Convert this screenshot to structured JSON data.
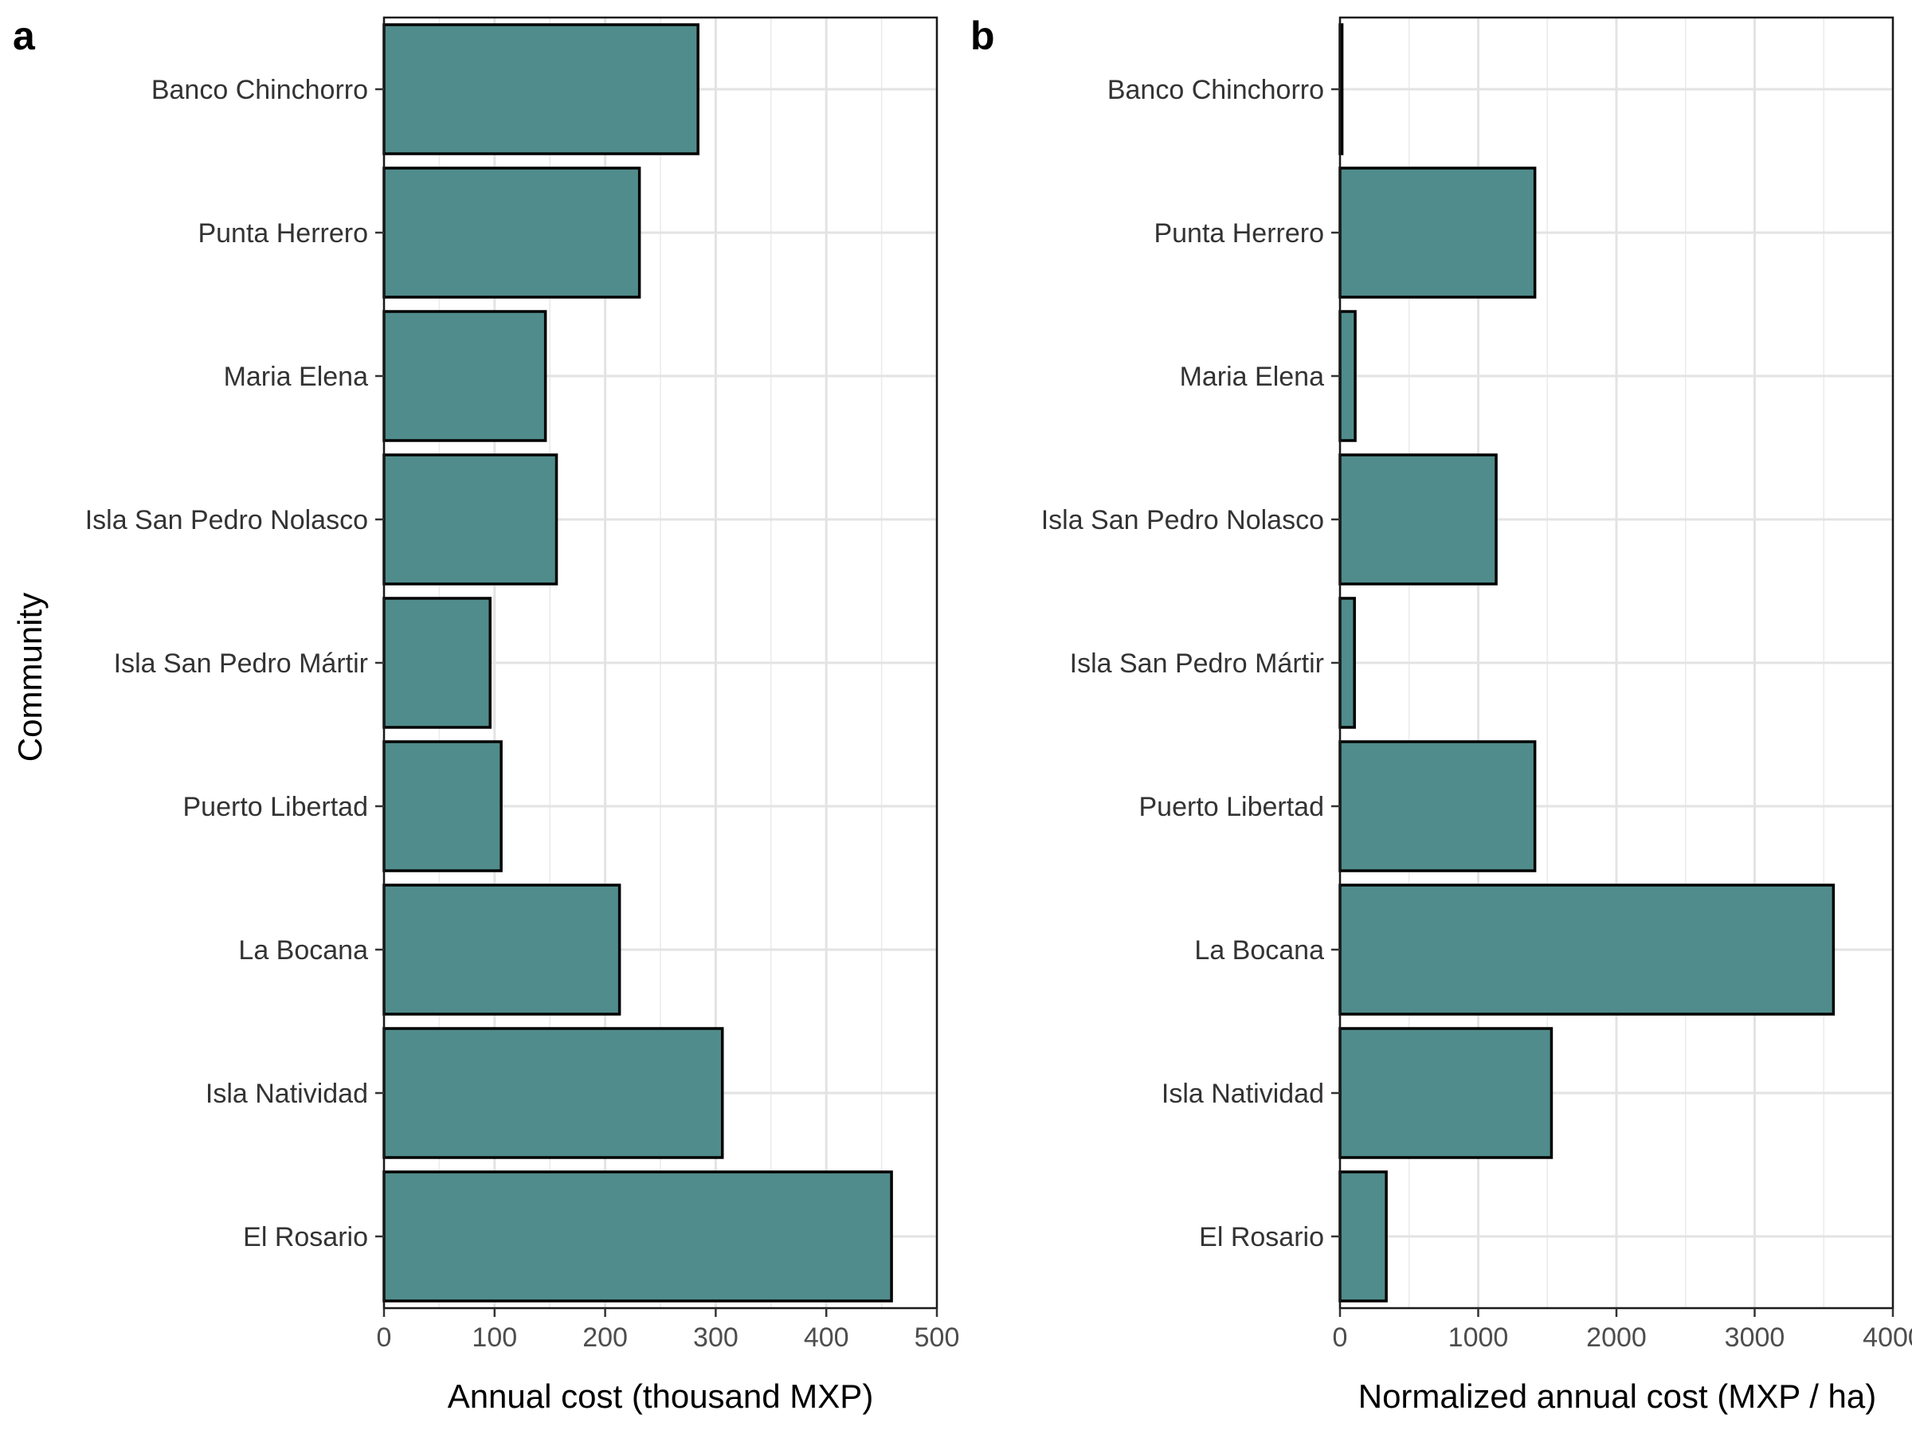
{
  "chart_data": [
    {
      "type": "bar",
      "orientation": "horizontal",
      "panel_label": "a",
      "categories": [
        "Banco Chinchorro",
        "Punta Herrero",
        "Maria Elena",
        "Isla San Pedro Nolasco",
        "Isla San Pedro Mártir",
        "Puerto Libertad",
        "La Bocana",
        "Isla Natividad",
        "El Rosario"
      ],
      "values": [
        284,
        231,
        146,
        156,
        96,
        106,
        213,
        306,
        459
      ],
      "xlabel": "Annual cost (thousand MXP)",
      "ylabel": "Community",
      "xlim": [
        0,
        500
      ],
      "xticks": [
        0,
        100,
        200,
        300,
        400,
        500
      ],
      "tick_labels": [
        "0",
        "100",
        "200",
        "300",
        "400",
        "500"
      ],
      "grid": true,
      "bar_color": "#508c8b",
      "bar_outline": "#000000"
    },
    {
      "type": "bar",
      "orientation": "horizontal",
      "panel_label": "b",
      "categories": [
        "Banco Chinchorro",
        "Punta Herrero",
        "Maria Elena",
        "Isla San Pedro Nolasco",
        "Isla San Pedro Mártir",
        "Puerto Libertad",
        "La Bocana",
        "Isla Natividad",
        "El Rosario"
      ],
      "values": [
        15,
        1410,
        110,
        1130,
        105,
        1410,
        3570,
        1530,
        335
      ],
      "xlabel": "Normalized annual cost (MXP / ha)",
      "ylabel": "",
      "xlim": [
        0,
        4000
      ],
      "xticks": [
        0,
        1000,
        2000,
        3000,
        4000
      ],
      "tick_labels": [
        "0",
        "1000",
        "2000",
        "3000",
        "4000"
      ],
      "grid": true,
      "bar_color": "#508c8b",
      "bar_outline": "#000000"
    }
  ]
}
